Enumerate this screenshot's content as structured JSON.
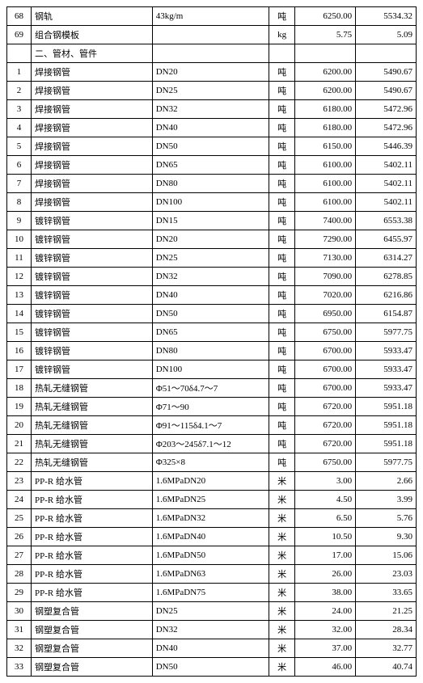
{
  "table": {
    "rows": [
      {
        "type": "data",
        "idx": "68",
        "name": "钢轨",
        "spec": "43kg/m",
        "unit": "吨",
        "p1": "6250.00",
        "p2": "5534.32"
      },
      {
        "type": "data",
        "idx": "69",
        "name": "组合钢模板",
        "spec": "",
        "unit": "kg",
        "p1": "5.75",
        "p2": "5.09"
      },
      {
        "type": "section",
        "title": "二、管材、管件"
      },
      {
        "type": "data",
        "idx": "1",
        "name": "焊接钢管",
        "spec": "DN20",
        "unit": "吨",
        "p1": "6200.00",
        "p2": "5490.67"
      },
      {
        "type": "data",
        "idx": "2",
        "name": "焊接钢管",
        "spec": "DN25",
        "unit": "吨",
        "p1": "6200.00",
        "p2": "5490.67"
      },
      {
        "type": "data",
        "idx": "3",
        "name": "焊接钢管",
        "spec": "DN32",
        "unit": "吨",
        "p1": "6180.00",
        "p2": "5472.96"
      },
      {
        "type": "data",
        "idx": "4",
        "name": "焊接钢管",
        "spec": "DN40",
        "unit": "吨",
        "p1": "6180.00",
        "p2": "5472.96"
      },
      {
        "type": "data",
        "idx": "5",
        "name": "焊接钢管",
        "spec": "DN50",
        "unit": "吨",
        "p1": "6150.00",
        "p2": "5446.39"
      },
      {
        "type": "data",
        "idx": "6",
        "name": "焊接钢管",
        "spec": "DN65",
        "unit": "吨",
        "p1": "6100.00",
        "p2": "5402.11"
      },
      {
        "type": "data",
        "idx": "7",
        "name": "焊接钢管",
        "spec": "DN80",
        "unit": "吨",
        "p1": "6100.00",
        "p2": "5402.11"
      },
      {
        "type": "data",
        "idx": "8",
        "name": "焊接钢管",
        "spec": "DN100",
        "unit": "吨",
        "p1": "6100.00",
        "p2": "5402.11"
      },
      {
        "type": "data",
        "idx": "9",
        "name": "镀锌钢管",
        "spec": "DN15",
        "unit": "吨",
        "p1": "7400.00",
        "p2": "6553.38"
      },
      {
        "type": "data",
        "idx": "10",
        "name": "镀锌钢管",
        "spec": "DN20",
        "unit": "吨",
        "p1": "7290.00",
        "p2": "6455.97"
      },
      {
        "type": "data",
        "idx": "11",
        "name": "镀锌钢管",
        "spec": "DN25",
        "unit": "吨",
        "p1": "7130.00",
        "p2": "6314.27"
      },
      {
        "type": "data",
        "idx": "12",
        "name": "镀锌钢管",
        "spec": "DN32",
        "unit": "吨",
        "p1": "7090.00",
        "p2": "6278.85"
      },
      {
        "type": "data",
        "idx": "13",
        "name": "镀锌钢管",
        "spec": "DN40",
        "unit": "吨",
        "p1": "7020.00",
        "p2": "6216.86"
      },
      {
        "type": "data",
        "idx": "14",
        "name": "镀锌钢管",
        "spec": "DN50",
        "unit": "吨",
        "p1": "6950.00",
        "p2": "6154.87"
      },
      {
        "type": "data",
        "idx": "15",
        "name": "镀锌钢管",
        "spec": "DN65",
        "unit": "吨",
        "p1": "6750.00",
        "p2": "5977.75"
      },
      {
        "type": "data",
        "idx": "16",
        "name": "镀锌钢管",
        "spec": "DN80",
        "unit": "吨",
        "p1": "6700.00",
        "p2": "5933.47"
      },
      {
        "type": "data",
        "idx": "17",
        "name": "镀锌钢管",
        "spec": "DN100",
        "unit": "吨",
        "p1": "6700.00",
        "p2": "5933.47"
      },
      {
        "type": "data",
        "idx": "18",
        "name": "热轧无缝钢管",
        "spec": "Φ51～70δ4.7～7",
        "unit": "吨",
        "p1": "6700.00",
        "p2": "5933.47"
      },
      {
        "type": "data",
        "idx": "19",
        "name": "热轧无缝钢管",
        "spec": "Φ71～90",
        "unit": "吨",
        "p1": "6720.00",
        "p2": "5951.18"
      },
      {
        "type": "data",
        "idx": "20",
        "name": "热轧无缝钢管",
        "spec": "Φ91～115δ4.1～7",
        "unit": "吨",
        "p1": "6720.00",
        "p2": "5951.18"
      },
      {
        "type": "data",
        "idx": "21",
        "name": "热轧无缝钢管",
        "spec": "Φ203～245δ7.1～12",
        "unit": "吨",
        "p1": "6720.00",
        "p2": "5951.18"
      },
      {
        "type": "data",
        "idx": "22",
        "name": "热轧无缝钢管",
        "spec": "Φ325×8",
        "unit": "吨",
        "p1": "6750.00",
        "p2": "5977.75"
      },
      {
        "type": "data",
        "idx": "23",
        "name": "PP-R 给水管",
        "spec": "1.6MPaDN20",
        "unit": "米",
        "p1": "3.00",
        "p2": "2.66"
      },
      {
        "type": "data",
        "idx": "24",
        "name": "PP-R 给水管",
        "spec": "1.6MPaDN25",
        "unit": "米",
        "p1": "4.50",
        "p2": "3.99"
      },
      {
        "type": "data",
        "idx": "25",
        "name": "PP-R 给水管",
        "spec": "1.6MPaDN32",
        "unit": "米",
        "p1": "6.50",
        "p2": "5.76"
      },
      {
        "type": "data",
        "idx": "26",
        "name": "PP-R 给水管",
        "spec": "1.6MPaDN40",
        "unit": "米",
        "p1": "10.50",
        "p2": "9.30"
      },
      {
        "type": "data",
        "idx": "27",
        "name": "PP-R 给水管",
        "spec": "1.6MPaDN50",
        "unit": "米",
        "p1": "17.00",
        "p2": "15.06"
      },
      {
        "type": "data",
        "idx": "28",
        "name": "PP-R 给水管",
        "spec": "1.6MPaDN63",
        "unit": "米",
        "p1": "26.00",
        "p2": "23.03"
      },
      {
        "type": "data",
        "idx": "29",
        "name": "PP-R 给水管",
        "spec": "1.6MPaDN75",
        "unit": "米",
        "p1": "38.00",
        "p2": "33.65"
      },
      {
        "type": "data",
        "idx": "30",
        "name": "钢塑复合管",
        "spec": "DN25",
        "unit": "米",
        "p1": "24.00",
        "p2": "21.25"
      },
      {
        "type": "data",
        "idx": "31",
        "name": "钢塑复合管",
        "spec": "DN32",
        "unit": "米",
        "p1": "32.00",
        "p2": "28.34"
      },
      {
        "type": "data",
        "idx": "32",
        "name": "钢塑复合管",
        "spec": "DN40",
        "unit": "米",
        "p1": "37.00",
        "p2": "32.77"
      },
      {
        "type": "data",
        "idx": "33",
        "name": "钢塑复合管",
        "spec": "DN50",
        "unit": "米",
        "p1": "46.00",
        "p2": "40.74"
      }
    ]
  }
}
